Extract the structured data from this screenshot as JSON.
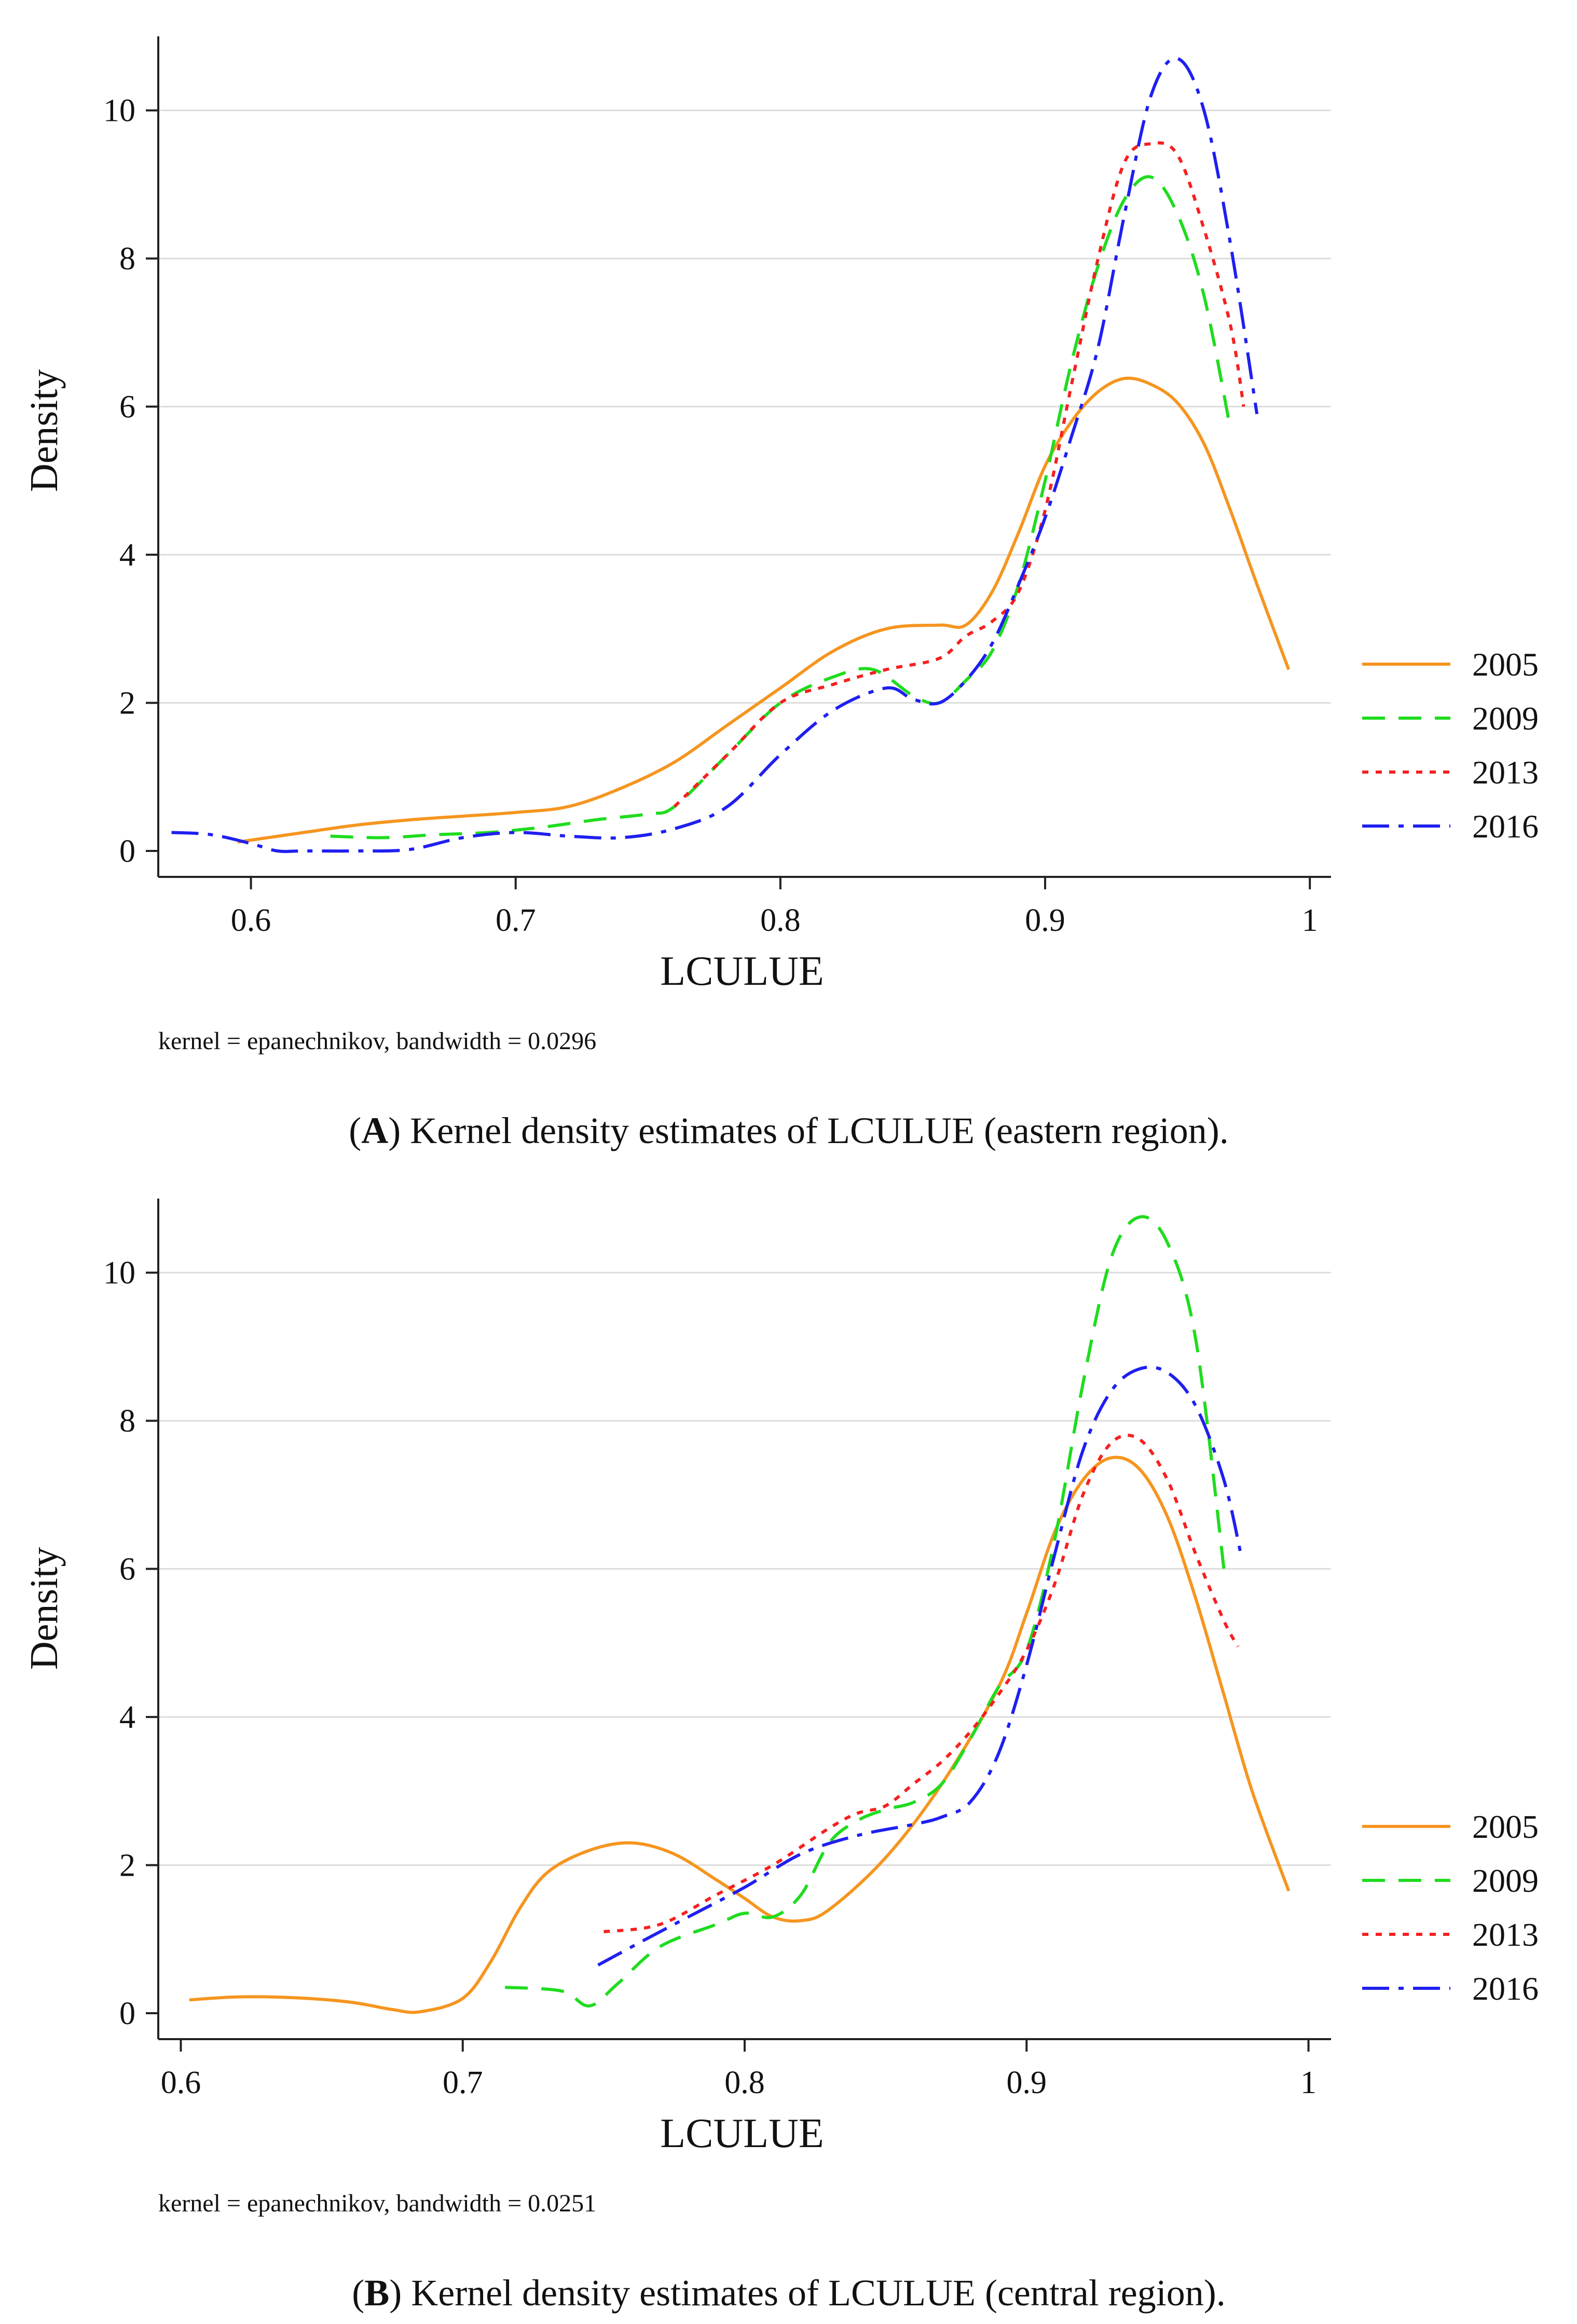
{
  "colors": {
    "2005": "#f5951f",
    "2009": "#1fdc1f",
    "2013": "#f52020",
    "2016": "#1f1ff0",
    "axis": "#222222",
    "grid": "#dcdcdc",
    "text": "#111111"
  },
  "chart_data": [
    {
      "id": "A",
      "type": "line",
      "caption": {
        "open": "(",
        "letter": "A",
        "rest": ") Kernel density estimates of LCULUE (eastern region)."
      },
      "xlabel": "LCULUE",
      "ylabel": "Density",
      "note": "kernel = epanechnikov, bandwidth = 0.0296",
      "xlim": [
        0.565,
        1.008
      ],
      "ylim": [
        -0.35,
        11.0
      ],
      "xticks": [
        0.6,
        0.7,
        0.8,
        0.9,
        1.0
      ],
      "xtick_labels": [
        "0.6",
        "0.7",
        "0.8",
        "0.9",
        "1"
      ],
      "yticks": [
        0,
        2,
        4,
        6,
        8,
        10
      ],
      "ytick_labels": [
        "0",
        "2",
        "4",
        "6",
        "8",
        "10"
      ],
      "grid": true,
      "legend_position": "right-middle",
      "series": [
        {
          "name": "2005",
          "x": [
            0.595,
            0.62,
            0.64,
            0.66,
            0.68,
            0.7,
            0.72,
            0.74,
            0.76,
            0.78,
            0.8,
            0.82,
            0.84,
            0.86,
            0.87,
            0.88,
            0.89,
            0.9,
            0.91,
            0.92,
            0.93,
            0.94,
            0.95,
            0.96,
            0.97,
            0.98,
            0.992
          ],
          "y": [
            0.12,
            0.25,
            0.35,
            0.42,
            0.47,
            0.52,
            0.6,
            0.85,
            1.2,
            1.7,
            2.2,
            2.7,
            3.0,
            3.05,
            3.05,
            3.5,
            4.3,
            5.2,
            5.8,
            6.2,
            6.38,
            6.3,
            6.05,
            5.5,
            4.6,
            3.6,
            2.45
          ]
        },
        {
          "name": "2009",
          "x": [
            0.63,
            0.65,
            0.67,
            0.69,
            0.71,
            0.73,
            0.75,
            0.76,
            0.78,
            0.8,
            0.82,
            0.835,
            0.85,
            0.86,
            0.87,
            0.88,
            0.89,
            0.9,
            0.91,
            0.92,
            0.93,
            0.94,
            0.95,
            0.96,
            0.97
          ],
          "y": [
            0.2,
            0.18,
            0.22,
            0.25,
            0.32,
            0.42,
            0.5,
            0.6,
            1.3,
            2.0,
            2.35,
            2.45,
            2.1,
            2.0,
            2.3,
            2.7,
            3.6,
            5.0,
            6.6,
            7.9,
            8.8,
            9.1,
            8.6,
            7.5,
            5.7
          ]
        },
        {
          "name": "2013",
          "x": [
            0.76,
            0.78,
            0.8,
            0.82,
            0.84,
            0.86,
            0.87,
            0.88,
            0.89,
            0.9,
            0.91,
            0.92,
            0.93,
            0.94,
            0.95,
            0.96,
            0.97,
            0.975
          ],
          "y": [
            0.6,
            1.3,
            2.0,
            2.25,
            2.45,
            2.6,
            2.9,
            3.1,
            3.5,
            4.6,
            6.3,
            8.0,
            9.3,
            9.55,
            9.4,
            8.4,
            7.1,
            6.0
          ]
        },
        {
          "name": "2016",
          "x": [
            0.57,
            0.585,
            0.6,
            0.61,
            0.62,
            0.64,
            0.66,
            0.68,
            0.7,
            0.72,
            0.74,
            0.76,
            0.78,
            0.8,
            0.82,
            0.84,
            0.85,
            0.86,
            0.87,
            0.88,
            0.89,
            0.9,
            0.91,
            0.92,
            0.93,
            0.94,
            0.95,
            0.96,
            0.97,
            0.98
          ],
          "y": [
            0.25,
            0.22,
            0.1,
            0.0,
            0.0,
            0.0,
            0.02,
            0.18,
            0.25,
            0.2,
            0.18,
            0.3,
            0.6,
            1.3,
            1.9,
            2.2,
            2.05,
            2.0,
            2.3,
            2.8,
            3.6,
            4.5,
            5.6,
            6.8,
            8.6,
            10.2,
            10.7,
            10.0,
            8.2,
            5.9
          ]
        }
      ]
    },
    {
      "id": "B",
      "type": "line",
      "caption": {
        "open": "(",
        "letter": "B",
        "rest": ") Kernel density estimates of LCULUE (central region)."
      },
      "xlabel": "LCULUE",
      "ylabel": "Density",
      "note": "kernel = epanechnikov, bandwidth = 0.0251",
      "xlim": [
        0.592,
        1.008
      ],
      "ylim": [
        -0.35,
        11.0
      ],
      "xticks": [
        0.6,
        0.7,
        0.8,
        0.9,
        1.0
      ],
      "xtick_labels": [
        "0.6",
        "0.7",
        "0.8",
        "0.9",
        "1"
      ],
      "yticks": [
        0,
        2,
        4,
        6,
        8,
        10
      ],
      "ytick_labels": [
        "0",
        "2",
        "4",
        "6",
        "8",
        "10"
      ],
      "grid": true,
      "legend_position": "right-middle",
      "series": [
        {
          "name": "2005",
          "x": [
            0.603,
            0.62,
            0.64,
            0.66,
            0.675,
            0.685,
            0.7,
            0.71,
            0.72,
            0.73,
            0.745,
            0.76,
            0.775,
            0.79,
            0.8,
            0.81,
            0.82,
            0.83,
            0.85,
            0.87,
            0.89,
            0.9,
            0.91,
            0.92,
            0.93,
            0.94,
            0.95,
            0.96,
            0.97,
            0.98,
            0.993
          ],
          "y": [
            0.18,
            0.22,
            0.21,
            0.15,
            0.05,
            0.02,
            0.2,
            0.7,
            1.4,
            1.9,
            2.2,
            2.3,
            2.15,
            1.8,
            1.55,
            1.3,
            1.25,
            1.4,
            2.1,
            3.1,
            4.4,
            5.4,
            6.5,
            7.2,
            7.5,
            7.35,
            6.7,
            5.6,
            4.3,
            3.0,
            1.65
          ]
        },
        {
          "name": "2009",
          "x": [
            0.715,
            0.735,
            0.745,
            0.755,
            0.77,
            0.79,
            0.8,
            0.81,
            0.82,
            0.83,
            0.84,
            0.85,
            0.86,
            0.87,
            0.88,
            0.89,
            0.9,
            0.91,
            0.92,
            0.93,
            0.94,
            0.95,
            0.96,
            0.97
          ],
          "y": [
            0.35,
            0.3,
            0.1,
            0.4,
            0.9,
            1.2,
            1.35,
            1.3,
            1.6,
            2.3,
            2.6,
            2.75,
            2.85,
            3.1,
            3.7,
            4.4,
            4.9,
            6.4,
            8.5,
            10.2,
            10.75,
            10.4,
            9.1,
            6.0
          ]
        },
        {
          "name": "2013",
          "x": [
            0.75,
            0.77,
            0.79,
            0.81,
            0.83,
            0.84,
            0.85,
            0.86,
            0.87,
            0.88,
            0.89,
            0.9,
            0.91,
            0.92,
            0.93,
            0.94,
            0.95,
            0.96,
            0.97,
            0.975
          ],
          "y": [
            1.1,
            1.2,
            1.6,
            2.0,
            2.5,
            2.7,
            2.8,
            3.1,
            3.4,
            3.8,
            4.3,
            4.9,
            5.8,
            7.0,
            7.7,
            7.75,
            7.2,
            6.2,
            5.3,
            4.95
          ]
        },
        {
          "name": "2016",
          "x": [
            0.748,
            0.765,
            0.78,
            0.8,
            0.82,
            0.84,
            0.86,
            0.87,
            0.88,
            0.89,
            0.9,
            0.91,
            0.92,
            0.93,
            0.94,
            0.95,
            0.96,
            0.97,
            0.976
          ],
          "y": [
            0.65,
            1.0,
            1.3,
            1.7,
            2.15,
            2.4,
            2.55,
            2.65,
            2.85,
            3.5,
            4.7,
            6.2,
            7.6,
            8.4,
            8.7,
            8.65,
            8.2,
            7.2,
            6.2
          ]
        }
      ]
    }
  ]
}
